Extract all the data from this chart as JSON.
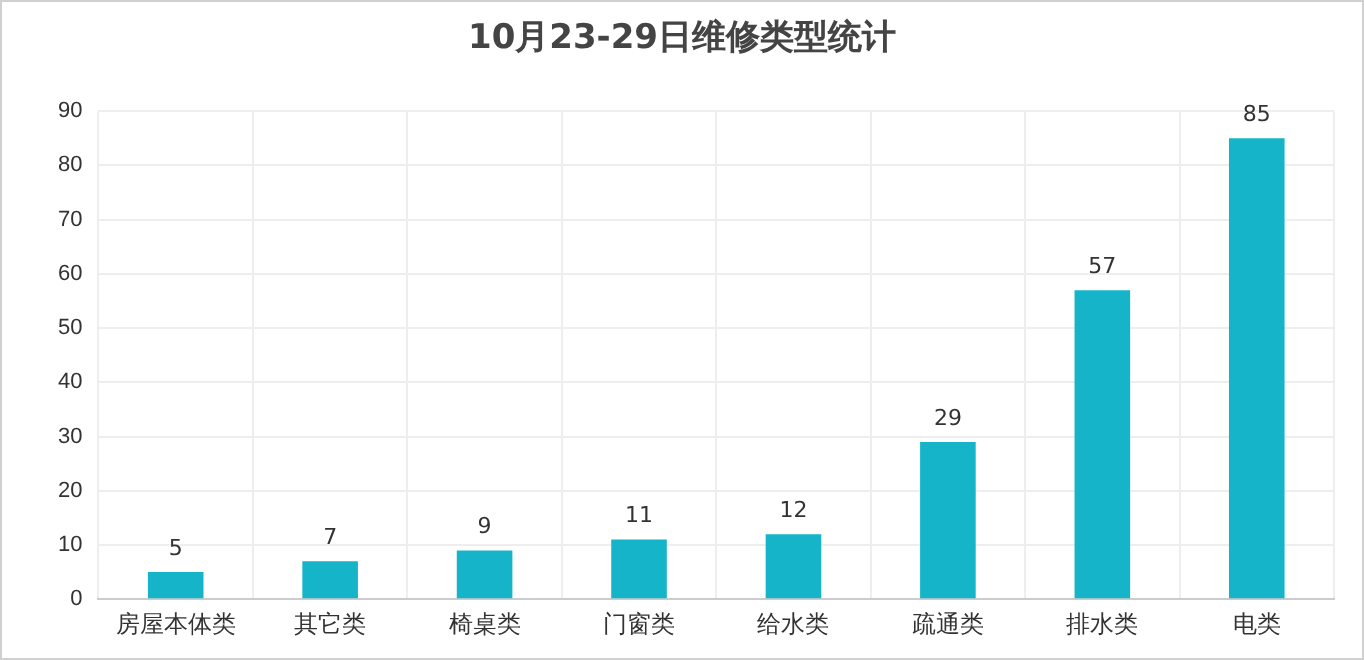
{
  "chart_data": {
    "type": "bar",
    "title": "10月23-29日维修类型统计",
    "categories": [
      "房屋本体类",
      "其它类",
      "椅桌类",
      "门窗类",
      "给水类",
      "疏通类",
      "排水类",
      "电类"
    ],
    "values": [
      5,
      7,
      9,
      11,
      12,
      29,
      57,
      85
    ],
    "color": "#16b4c8",
    "ylim": [
      0,
      90
    ],
    "yticks": [
      0,
      10,
      20,
      30,
      40,
      50,
      60,
      70,
      80,
      90
    ],
    "grid": true,
    "data_labels": true
  }
}
